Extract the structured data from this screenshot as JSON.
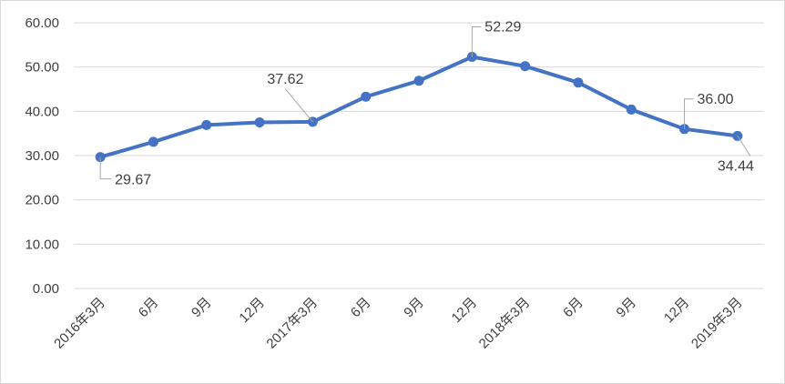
{
  "chart_data": {
    "type": "line",
    "title": "",
    "xlabel": "",
    "ylabel": "",
    "categories": [
      "2016年3月",
      "6月",
      "9月",
      "12月",
      "2017年3月",
      "6月",
      "9月",
      "12月",
      "2018年3月",
      "6月",
      "9月",
      "12月",
      "2019年3月"
    ],
    "series": [
      {
        "values": [
          29.67,
          33.1,
          36.9,
          37.5,
          37.62,
          43.3,
          46.9,
          52.29,
          50.2,
          46.5,
          40.4,
          36.0,
          34.44
        ]
      }
    ],
    "ylim": [
      0,
      60
    ],
    "yticks": [
      "0.00",
      "10.00",
      "20.00",
      "30.00",
      "40.00",
      "50.00",
      "60.00"
    ],
    "grid": "horizontal",
    "legend": "none",
    "line_color": "#4472C4",
    "grid_color": "#d9d9d9",
    "data_labels": [
      {
        "index": 0,
        "text": "29.67",
        "placement": "below-right"
      },
      {
        "index": 4,
        "text": "37.62",
        "placement": "above-left"
      },
      {
        "index": 7,
        "text": "52.29",
        "placement": "above-right"
      },
      {
        "index": 11,
        "text": "36.00",
        "placement": "above-right"
      },
      {
        "index": 12,
        "text": "34.44",
        "placement": "below-left"
      }
    ]
  }
}
